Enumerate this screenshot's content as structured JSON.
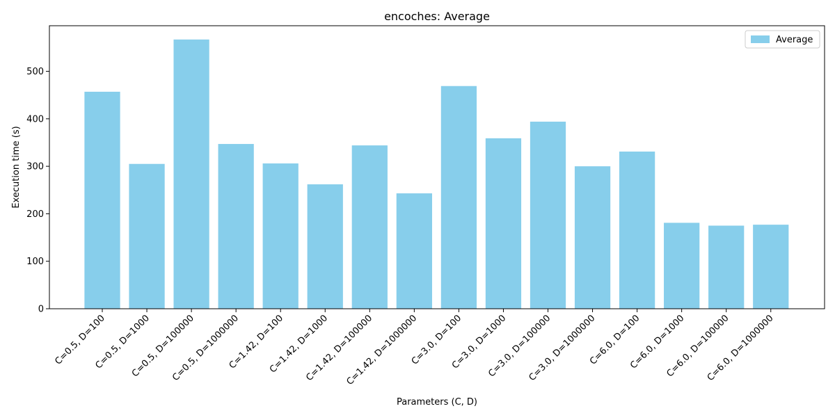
{
  "chart_data": {
    "type": "bar",
    "title": "encoches: Average",
    "xlabel": "Parameters (C, D)",
    "ylabel": "Execution time (s)",
    "categories": [
      "C=0.5, D=100",
      "C=0.5, D=1000",
      "C=0.5, D=100000",
      "C=0.5, D=1000000",
      "C=1.42, D=100",
      "C=1.42, D=1000",
      "C=1.42, D=100000",
      "C=1.42, D=1000000",
      "C=3.0, D=100",
      "C=3.0, D=1000",
      "C=3.0, D=100000",
      "C=3.0, D=1000000",
      "C=6.0, D=100",
      "C=6.0, D=1000",
      "C=6.0, D=100000",
      "C=6.0, D=1000000"
    ],
    "series": [
      {
        "name": "Average",
        "color": "#87ceeb",
        "values": [
          457,
          305,
          567,
          347,
          306,
          262,
          344,
          243,
          469,
          359,
          394,
          300,
          331,
          181,
          175,
          177
        ]
      }
    ],
    "yticks": [
      0,
      100,
      200,
      300,
      400,
      500
    ],
    "ylim": [
      0,
      596
    ],
    "grid": false,
    "legend_position": "top-right"
  }
}
